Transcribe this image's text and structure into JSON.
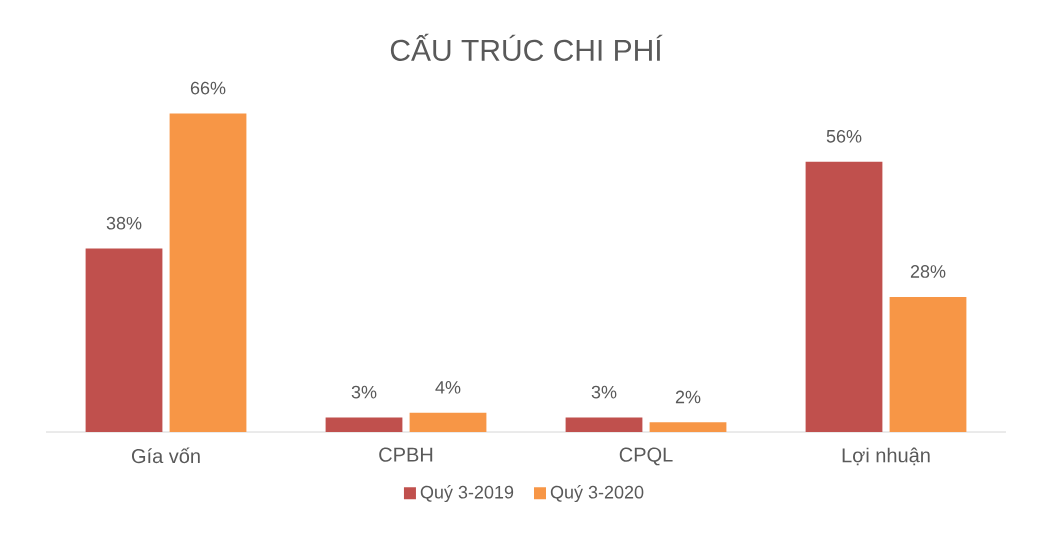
{
  "chart_data": {
    "type": "bar",
    "title": "CẤU TRÚC CHI PHÍ",
    "categories": [
      "Gía vốn",
      "CPBH",
      "CPQL",
      "Lợi nhuận"
    ],
    "series": [
      {
        "name": "Quý 3-2019",
        "color": "#c0504d",
        "values": [
          38,
          3,
          3,
          56
        ],
        "value_labels": [
          "38%",
          "3%",
          "3%",
          "56%"
        ]
      },
      {
        "name": "Quý 3-2020",
        "color": "#f79646",
        "values": [
          66,
          4,
          2,
          28
        ],
        "value_labels": [
          "66%",
          "4%",
          "2%",
          "28%"
        ]
      }
    ],
    "legend": "bottom"
  }
}
